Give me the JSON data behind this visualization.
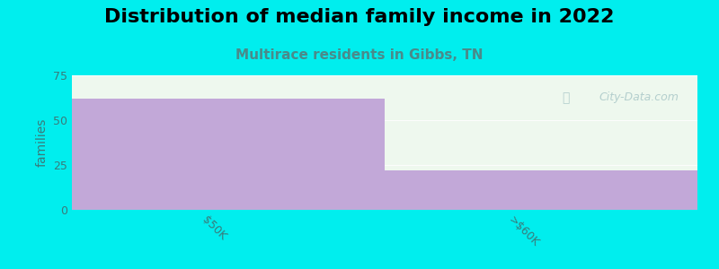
{
  "title": "Distribution of median family income in 2022",
  "subtitle": "Multirace residents in Gibbs, TN",
  "categories": [
    "$50K",
    ">$60K"
  ],
  "values": [
    62,
    22
  ],
  "bar_color": "#c2a8d8",
  "background_color": "#00eeee",
  "plot_bg_color": "#eef8ee",
  "ylabel": "families",
  "ylim": [
    0,
    75
  ],
  "yticks": [
    0,
    25,
    50,
    75
  ],
  "title_fontsize": 16,
  "subtitle_fontsize": 11,
  "subtitle_color": "#4a8a8a",
  "ylabel_color": "#3a7a7a",
  "tick_color": "#3a7a7a",
  "watermark": "City-Data.com",
  "watermark_color": "#aac8c8",
  "tick_label_rotation": -45
}
